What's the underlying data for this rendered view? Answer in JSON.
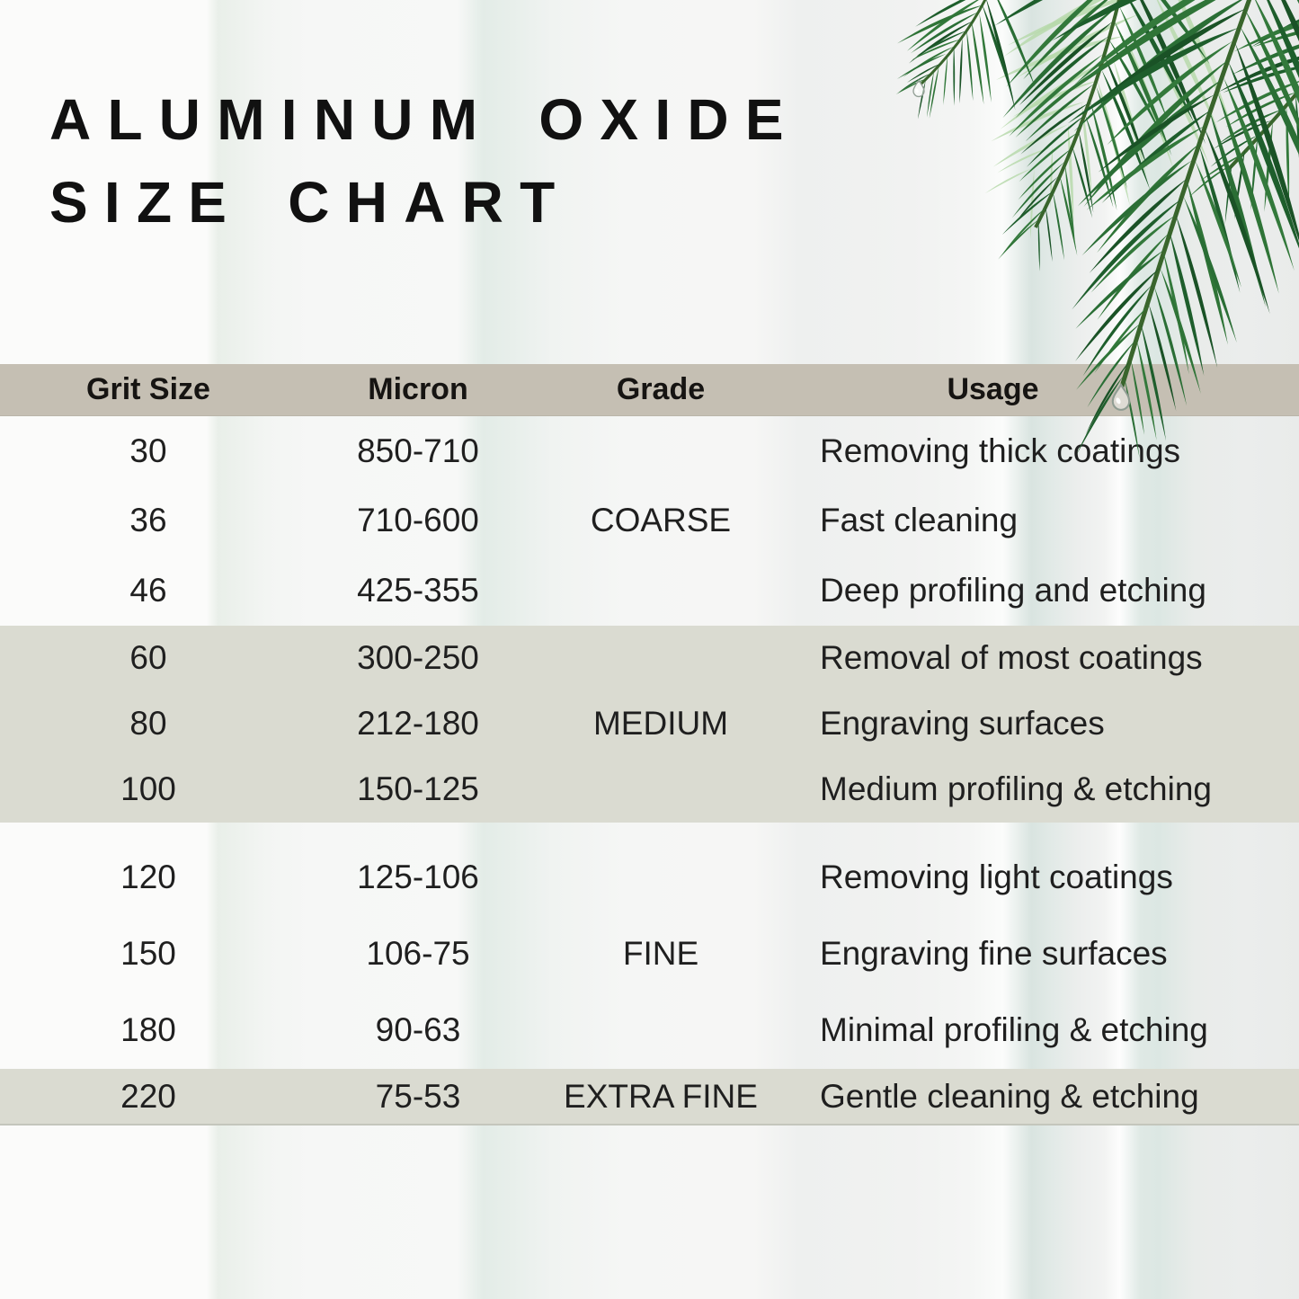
{
  "title": {
    "line1": "ALUMINUM OXIDE",
    "line2": "SIZE CHART"
  },
  "table": {
    "headers": {
      "grit": "Grit Size",
      "micron": "Micron",
      "grade": "Grade",
      "usage": "Usage"
    },
    "groups": [
      {
        "grade": "COARSE",
        "rows": [
          {
            "grit": "30",
            "micron": "850-710",
            "usage": "Removing thick coatings"
          },
          {
            "grit": "36",
            "micron": "710-600",
            "usage": "Fast cleaning"
          },
          {
            "grit": "46",
            "micron": "425-355",
            "usage": "Deep profiling and etching"
          }
        ]
      },
      {
        "grade": "MEDIUM",
        "rows": [
          {
            "grit": "60",
            "micron": "300-250",
            "usage": "Removal of most coatings"
          },
          {
            "grit": "80",
            "micron": "212-180",
            "usage": "Engraving surfaces"
          },
          {
            "grit": "100",
            "micron": "150-125",
            "usage": "Medium profiling & etching"
          }
        ]
      },
      {
        "grade": "FINE",
        "rows": [
          {
            "grit": "120",
            "micron": "125-106",
            "usage": "Removing light coatings"
          },
          {
            "grit": "150",
            "micron": "106-75",
            "usage": "Engraving fine surfaces"
          },
          {
            "grit": "180",
            "micron": "90-63",
            "usage": "Minimal profiling & etching"
          }
        ]
      },
      {
        "grade": "EXTRA FINE",
        "rows": [
          {
            "grit": "220",
            "micron": "75-53",
            "usage": "Gentle cleaning & etching"
          }
        ]
      }
    ]
  },
  "decor": {
    "palm_leaf": "palm-leaf-illustration",
    "water_drops": "water-drop-icons"
  },
  "colors": {
    "header_band": "#c5bfb3",
    "group_band": "#dadbd1",
    "title_text": "#111111",
    "body_text": "#1f1f1f",
    "palm_greens": [
      "#1e5e2c",
      "#2a6e35",
      "#33793b",
      "#1a5226",
      "#2f7437"
    ],
    "palm_light_green": "#b7d9ab",
    "palm_stem": "#39652c",
    "droplet_stroke": "#93a096"
  }
}
